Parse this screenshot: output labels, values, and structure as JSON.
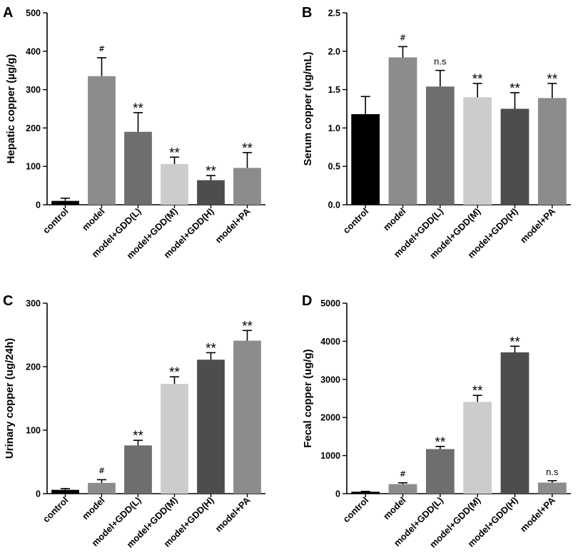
{
  "chart_data": [
    {
      "panel": "A",
      "type": "bar",
      "ylabel": "Hepatic copper (µg/g)",
      "ylim": [
        0,
        500
      ],
      "yticks": [
        "0",
        "100",
        "200",
        "300",
        "400",
        "500"
      ],
      "categories": [
        "control",
        "model",
        "model+GDD(L)",
        "model+GDD(M)",
        "model+GDD(H)",
        "model+PA"
      ],
      "values": [
        10,
        335,
        190,
        106,
        64,
        96
      ],
      "errors": [
        7,
        48,
        50,
        18,
        12,
        40
      ],
      "significance": [
        "",
        "#",
        "**",
        "**",
        "**",
        "**"
      ],
      "colors": [
        "#000000",
        "#8c8c8c",
        "#6e6e6e",
        "#cccccc",
        "#4d4d4d",
        "#8c8c8c"
      ]
    },
    {
      "panel": "B",
      "type": "bar",
      "ylabel": "Serum copper (ug/mL)",
      "ylim": [
        0,
        2.5
      ],
      "yticks": [
        "0.0",
        "0.5",
        "1.0",
        "1.5",
        "2.0",
        "2.5"
      ],
      "categories": [
        "control",
        "model",
        "model+GDD(L)",
        "model+GDD(M)",
        "model+GDD(H)",
        "model+PA"
      ],
      "values": [
        1.18,
        1.92,
        1.54,
        1.4,
        1.25,
        1.39
      ],
      "errors": [
        0.23,
        0.14,
        0.21,
        0.18,
        0.21,
        0.19
      ],
      "significance": [
        "",
        "#",
        "n.s",
        "**",
        "**",
        "**"
      ],
      "colors": [
        "#000000",
        "#8c8c8c",
        "#6e6e6e",
        "#cccccc",
        "#4d4d4d",
        "#8c8c8c"
      ]
    },
    {
      "panel": "C",
      "type": "bar",
      "ylabel": "Urinary copper (ug/24h)",
      "ylim": [
        0,
        300
      ],
      "yticks": [
        "0",
        "100",
        "200",
        "300"
      ],
      "categories": [
        "control",
        "model",
        "model+GDD(L)",
        "model+GDD(M)",
        "model+GDD(H)",
        "model+PA"
      ],
      "values": [
        6,
        17,
        76,
        173,
        211,
        241
      ],
      "errors": [
        2,
        5,
        8,
        11,
        11,
        16
      ],
      "significance": [
        "",
        "#",
        "**",
        "**",
        "**",
        "**"
      ],
      "colors": [
        "#000000",
        "#8c8c8c",
        "#6e6e6e",
        "#cccccc",
        "#4d4d4d",
        "#8c8c8c"
      ]
    },
    {
      "panel": "D",
      "type": "bar",
      "ylabel": "Fecal copper (ug/g)",
      "ylim": [
        0,
        5000
      ],
      "yticks": [
        "0",
        "1000",
        "2000",
        "3000",
        "4000",
        "5000"
      ],
      "categories": [
        "control",
        "model",
        "model+GDD(L)",
        "model+GDD(M)",
        "model+GDD(H)",
        "model+PA"
      ],
      "values": [
        50,
        250,
        1170,
        2410,
        3710,
        290
      ],
      "errors": [
        10,
        35,
        70,
        170,
        160,
        50
      ],
      "significance": [
        "",
        "#",
        "**",
        "**",
        "**",
        "n.s"
      ],
      "colors": [
        "#000000",
        "#8c8c8c",
        "#6e6e6e",
        "#cccccc",
        "#4d4d4d",
        "#8c8c8c"
      ]
    }
  ]
}
